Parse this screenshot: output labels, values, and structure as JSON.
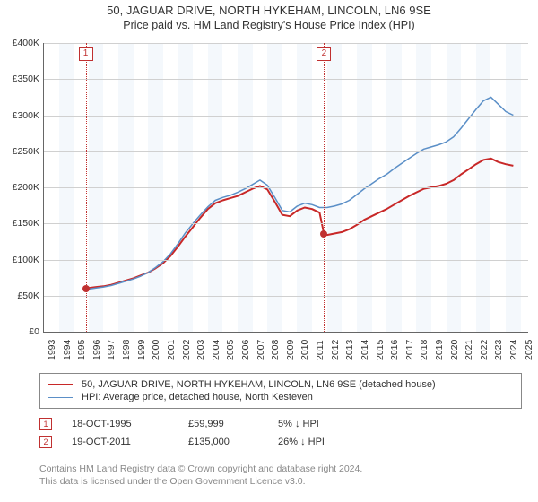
{
  "title": {
    "line1": "50, JAGUAR DRIVE, NORTH HYKEHAM, LINCOLN, LN6 9SE",
    "line2": "Price paid vs. HM Land Registry's House Price Index (HPI)"
  },
  "chart": {
    "type": "line",
    "background_color": "#ffffff",
    "alt_band_color": "#f4f8fc",
    "grid_color": "#d0d0d0",
    "x_years": [
      1993,
      1994,
      1995,
      1996,
      1997,
      1998,
      1999,
      2000,
      2001,
      2002,
      2003,
      2004,
      2005,
      2006,
      2007,
      2008,
      2009,
      2010,
      2011,
      2012,
      2013,
      2014,
      2015,
      2016,
      2017,
      2018,
      2019,
      2020,
      2021,
      2022,
      2023,
      2024,
      2025
    ],
    "y_ticks": [
      0,
      50000,
      100000,
      150000,
      200000,
      250000,
      300000,
      350000,
      400000
    ],
    "y_tick_labels": [
      "£0",
      "£50K",
      "£100K",
      "£150K",
      "£200K",
      "£250K",
      "£300K",
      "£350K",
      "£400K"
    ],
    "ylim": [
      0,
      400000
    ],
    "xlim": [
      1993,
      2025.5
    ],
    "tick_fontsize": 10.5,
    "title_fontsize": 13,
    "markers": [
      {
        "num": "1",
        "year": 1995.8,
        "price": 59999,
        "color": "#c03030"
      },
      {
        "num": "2",
        "year": 2011.8,
        "price": 135000,
        "color": "#c03030"
      }
    ],
    "series": [
      {
        "name": "price_paid",
        "label": "50, JAGUAR DRIVE, NORTH HYKEHAM, LINCOLN, LN6 9SE (detached house)",
        "color": "#c82828",
        "line_width": 2,
        "data": [
          [
            1995.8,
            59999
          ],
          [
            1996,
            60500
          ],
          [
            1996.5,
            62000
          ],
          [
            1997,
            63000
          ],
          [
            1997.5,
            65000
          ],
          [
            1998,
            68000
          ],
          [
            1998.5,
            71000
          ],
          [
            1999,
            74000
          ],
          [
            1999.5,
            78000
          ],
          [
            2000,
            82000
          ],
          [
            2000.5,
            88000
          ],
          [
            2001,
            95000
          ],
          [
            2001.5,
            105000
          ],
          [
            2002,
            118000
          ],
          [
            2002.5,
            132000
          ],
          [
            2003,
            145000
          ],
          [
            2003.5,
            158000
          ],
          [
            2004,
            170000
          ],
          [
            2004.5,
            178000
          ],
          [
            2005,
            182000
          ],
          [
            2005.5,
            185000
          ],
          [
            2006,
            188000
          ],
          [
            2006.5,
            193000
          ],
          [
            2007,
            198000
          ],
          [
            2007.5,
            202000
          ],
          [
            2008,
            197000
          ],
          [
            2008.5,
            180000
          ],
          [
            2009,
            162000
          ],
          [
            2009.5,
            160000
          ],
          [
            2010,
            168000
          ],
          [
            2010.5,
            172000
          ],
          [
            2011,
            170000
          ],
          [
            2011.5,
            165000
          ],
          [
            2011.8,
            135000
          ],
          [
            2012,
            134000
          ],
          [
            2012.5,
            136000
          ],
          [
            2013,
            138000
          ],
          [
            2013.5,
            142000
          ],
          [
            2014,
            148000
          ],
          [
            2014.5,
            155000
          ],
          [
            2015,
            160000
          ],
          [
            2015.5,
            165000
          ],
          [
            2016,
            170000
          ],
          [
            2016.5,
            176000
          ],
          [
            2017,
            182000
          ],
          [
            2017.5,
            188000
          ],
          [
            2018,
            193000
          ],
          [
            2018.5,
            198000
          ],
          [
            2019,
            200000
          ],
          [
            2019.5,
            202000
          ],
          [
            2020,
            205000
          ],
          [
            2020.5,
            210000
          ],
          [
            2021,
            218000
          ],
          [
            2021.5,
            225000
          ],
          [
            2022,
            232000
          ],
          [
            2022.5,
            238000
          ],
          [
            2023,
            240000
          ],
          [
            2023.5,
            235000
          ],
          [
            2024,
            232000
          ],
          [
            2024.5,
            230000
          ]
        ]
      },
      {
        "name": "hpi",
        "label": "HPI: Average price, detached house, North Kesteven",
        "color": "#5b8fc7",
        "line_width": 1.5,
        "data": [
          [
            1995.8,
            58000
          ],
          [
            1996,
            59000
          ],
          [
            1996.5,
            60500
          ],
          [
            1997,
            62000
          ],
          [
            1997.5,
            64000
          ],
          [
            1998,
            67000
          ],
          [
            1998.5,
            70000
          ],
          [
            1999,
            73000
          ],
          [
            1999.5,
            77000
          ],
          [
            2000,
            82000
          ],
          [
            2000.5,
            89000
          ],
          [
            2001,
            97000
          ],
          [
            2001.5,
            108000
          ],
          [
            2002,
            122000
          ],
          [
            2002.5,
            137000
          ],
          [
            2003,
            150000
          ],
          [
            2003.5,
            162000
          ],
          [
            2004,
            173000
          ],
          [
            2004.5,
            182000
          ],
          [
            2005,
            186000
          ],
          [
            2005.5,
            189000
          ],
          [
            2006,
            193000
          ],
          [
            2006.5,
            198000
          ],
          [
            2007,
            204000
          ],
          [
            2007.5,
            210000
          ],
          [
            2008,
            203000
          ],
          [
            2008.5,
            186000
          ],
          [
            2009,
            168000
          ],
          [
            2009.5,
            166000
          ],
          [
            2010,
            174000
          ],
          [
            2010.5,
            178000
          ],
          [
            2011,
            176000
          ],
          [
            2011.5,
            172000
          ],
          [
            2012,
            172000
          ],
          [
            2012.5,
            174000
          ],
          [
            2013,
            177000
          ],
          [
            2013.5,
            182000
          ],
          [
            2014,
            190000
          ],
          [
            2014.5,
            198000
          ],
          [
            2015,
            205000
          ],
          [
            2015.5,
            212000
          ],
          [
            2016,
            218000
          ],
          [
            2016.5,
            226000
          ],
          [
            2017,
            233000
          ],
          [
            2017.5,
            240000
          ],
          [
            2018,
            247000
          ],
          [
            2018.5,
            253000
          ],
          [
            2019,
            256000
          ],
          [
            2019.5,
            259000
          ],
          [
            2020,
            263000
          ],
          [
            2020.5,
            270000
          ],
          [
            2021,
            282000
          ],
          [
            2021.5,
            295000
          ],
          [
            2022,
            308000
          ],
          [
            2022.5,
            320000
          ],
          [
            2023,
            325000
          ],
          [
            2023.5,
            315000
          ],
          [
            2024,
            305000
          ],
          [
            2024.5,
            300000
          ]
        ]
      }
    ]
  },
  "legend": {
    "items": [
      {
        "color": "#c82828",
        "width": 2,
        "label": "50, JAGUAR DRIVE, NORTH HYKEHAM, LINCOLN, LN6 9SE (detached house)"
      },
      {
        "color": "#5b8fc7",
        "width": 1.5,
        "label": "HPI: Average price, detached house, North Kesteven"
      }
    ]
  },
  "sales": [
    {
      "num": "1",
      "date": "18-OCT-1995",
      "price": "£59,999",
      "pct": "5% ↓ HPI"
    },
    {
      "num": "2",
      "date": "19-OCT-2011",
      "price": "£135,000",
      "pct": "26% ↓ HPI"
    }
  ],
  "footer": {
    "line1": "Contains HM Land Registry data © Crown copyright and database right 2024.",
    "line2": "This data is licensed under the Open Government Licence v3.0."
  }
}
